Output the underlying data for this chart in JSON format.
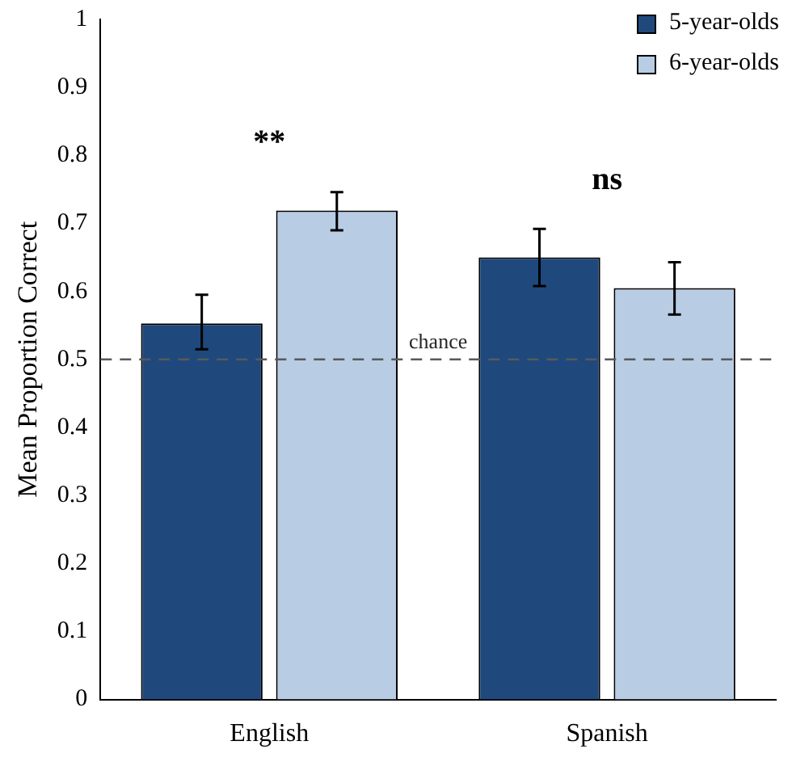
{
  "chart_data": {
    "type": "bar",
    "ylabel": "Mean Proportion Correct",
    "categories": [
      "English",
      "Spanish"
    ],
    "series": [
      {
        "name": "5-year-olds",
        "color": "#1f497d",
        "values": [
          0.553,
          0.65
        ],
        "errors": [
          [
            0.515,
            0.595
          ],
          [
            0.608,
            0.692
          ]
        ]
      },
      {
        "name": "6-year-olds",
        "color": "#b8cce4",
        "values": [
          0.719,
          0.605
        ],
        "errors": [
          [
            0.69,
            0.746
          ],
          [
            0.566,
            0.643
          ]
        ]
      }
    ],
    "ylim": [
      0,
      1
    ],
    "yticks": [
      0,
      0.1,
      0.2,
      0.3,
      0.4,
      0.5,
      0.6,
      0.7,
      0.8,
      0.9,
      1
    ],
    "grid": false,
    "legend": "top right",
    "ref_lines": [
      {
        "axis": "y",
        "value": 0.5,
        "label": "chance",
        "color": "#595959",
        "line_style": "dashed"
      }
    ],
    "annotations": [
      "**",
      "ns"
    ]
  }
}
